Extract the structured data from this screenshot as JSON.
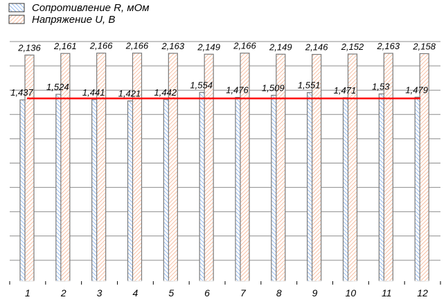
{
  "chart_data": {
    "type": "bar",
    "categories": [
      "1",
      "2",
      "3",
      "4",
      "5",
      "6",
      "7",
      "8",
      "9",
      "10",
      "11",
      "12"
    ],
    "series": [
      {
        "name": "Сопротивление R, мОм",
        "color": "#6fa0e6",
        "pattern": "hatch-backslash",
        "values": [
          1.437,
          1.524,
          1.441,
          1.421,
          1.442,
          1.554,
          1.476,
          1.509,
          1.551,
          1.471,
          1.53,
          1.479
        ],
        "labels": [
          "1,437",
          "1,524",
          "1,441",
          "1,421",
          "1,442",
          "1,554",
          "1,476",
          "1,509",
          "1,551",
          "1,471",
          "1,53",
          "1,479"
        ]
      },
      {
        "name": "Напряжение U, В",
        "color": "#f4a57e",
        "pattern": "hatch-slash",
        "values": [
          2.136,
          2.161,
          2.166,
          2.166,
          2.163,
          2.149,
          2.166,
          2.149,
          2.146,
          2.152,
          2.163,
          2.158
        ],
        "labels": [
          "2,136",
          "2,161",
          "2,166",
          "2,166",
          "2,163",
          "2,149",
          "2,166",
          "2,149",
          "2,146",
          "2,152",
          "2,163",
          "2,158"
        ]
      }
    ],
    "reference_line": {
      "value": 1.46,
      "color": "#ff0000"
    },
    "grid": true,
    "legend": "top-left",
    "title": "",
    "xlabel": "",
    "ylabel": ""
  }
}
